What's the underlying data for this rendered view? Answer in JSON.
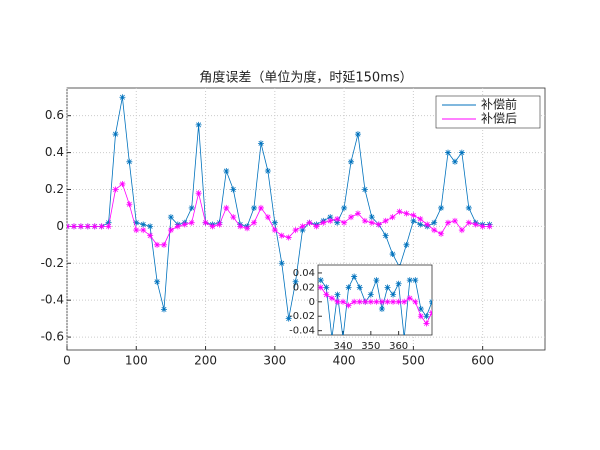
{
  "chart_data": [
    {
      "type": "line",
      "title": "角度误差（单位为度，时延150ms）",
      "x": [
        0,
        10,
        20,
        30,
        40,
        50,
        60,
        70,
        80,
        90,
        100,
        110,
        120,
        130,
        140,
        150,
        160,
        170,
        180,
        190,
        200,
        210,
        220,
        230,
        240,
        250,
        260,
        270,
        280,
        290,
        300,
        310,
        320,
        330,
        340,
        350,
        360,
        370,
        380,
        390,
        400,
        410,
        420,
        430,
        440,
        450,
        460,
        470,
        480,
        490,
        500,
        510,
        520,
        530,
        540,
        550,
        560,
        570,
        580,
        590,
        600,
        610
      ],
      "series": [
        {
          "name": "补偿前",
          "color": "#0072bd",
          "values": [
            0,
            0,
            0,
            0,
            0,
            0,
            0.02,
            0.5,
            0.7,
            0.35,
            0.02,
            0.01,
            0,
            -0.3,
            -0.45,
            0.05,
            0.01,
            0.02,
            0.1,
            0.55,
            0.02,
            0.01,
            0.02,
            0.3,
            0.2,
            0.01,
            0,
            0.1,
            0.45,
            0.3,
            0.02,
            -0.2,
            -0.5,
            -0.3,
            -0.02,
            0.02,
            0.01,
            0.03,
            0.05,
            0.02,
            0.1,
            0.35,
            0.5,
            0.2,
            0.05,
            0.01,
            -0.05,
            -0.15,
            -0.22,
            -0.1,
            0.03,
            0.01,
            0,
            0.02,
            0.1,
            0.4,
            0.35,
            0.4,
            0.1,
            0.02,
            0.01,
            0.01
          ]
        },
        {
          "name": "补偿后",
          "color": "#ff00ff",
          "values": [
            0,
            0,
            0,
            0,
            0,
            0,
            0,
            0.2,
            0.23,
            0.12,
            -0.02,
            -0.02,
            -0.05,
            -0.1,
            -0.1,
            -0.02,
            0,
            0.01,
            0.02,
            0.18,
            0.02,
            0,
            0.01,
            0.1,
            0.05,
            0,
            -0.01,
            0.02,
            0.1,
            0.05,
            -0.02,
            -0.05,
            -0.06,
            -0.02,
            0,
            0.02,
            0,
            0.02,
            0.03,
            0.04,
            0.02,
            0.05,
            0.07,
            0.03,
            0.02,
            0.01,
            0.03,
            0.05,
            0.08,
            0.07,
            0.06,
            0.04,
            0.01,
            -0.02,
            -0.04,
            0.02,
            0.03,
            -0.02,
            0.02,
            0.01,
            0,
            0
          ]
        }
      ],
      "xlim": [
        0,
        690
      ],
      "xticks": [
        0,
        100,
        200,
        300,
        400,
        500,
        600
      ],
      "ylim": [
        -0.67,
        0.75
      ],
      "yticks": [
        -0.6,
        -0.4,
        -0.2,
        0,
        0.2,
        0.4,
        0.6
      ],
      "grid": true,
      "legend": "upper right"
    },
    {
      "type": "line",
      "x": [
        332,
        334,
        336,
        338,
        340,
        342,
        344,
        346,
        348,
        350,
        352,
        354,
        356,
        358,
        360,
        362,
        364,
        366,
        368,
        370,
        372
      ],
      "series": [
        {
          "color": "#0072bd",
          "values": [
            0.03,
            0.02,
            -0.05,
            0.01,
            -0.05,
            0.02,
            0.035,
            0.02,
            0,
            0.01,
            0.03,
            -0.01,
            0.02,
            0.01,
            0.025,
            -0.05,
            0.03,
            0.03,
            -0.01,
            -0.02,
            0
          ]
        },
        {
          "color": "#ff00ff",
          "values": [
            0.02,
            0.01,
            0.005,
            0,
            0,
            -0.005,
            0,
            0,
            0,
            0,
            0,
            0,
            0,
            0,
            0,
            0,
            0.005,
            0,
            -0.02,
            -0.03,
            -0.015
          ]
        }
      ],
      "xlim": [
        331,
        372
      ],
      "xticks": [
        340,
        350,
        360
      ],
      "ylim": [
        -0.046,
        0.051
      ],
      "yticks": [
        -0.04,
        -0.02,
        0,
        0.02,
        0.04
      ],
      "grid": false
    }
  ]
}
